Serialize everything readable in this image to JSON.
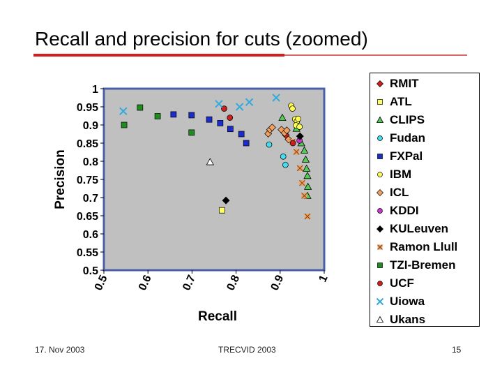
{
  "slide": {
    "title": "Recall and precision for cuts (zoomed)",
    "footer_left": "17. Nov 2003",
    "footer_center": "TRECVID 2003",
    "footer_right": "15"
  },
  "colors": {
    "plot_bg": "#c0c0c0",
    "plot_border": "#4a5fa8",
    "title_rule": "#d11f1f"
  },
  "chart_data": {
    "type": "scatter",
    "title": "",
    "xlabel": "Recall",
    "ylabel": "Precision",
    "xlim": [
      0.5,
      1.0
    ],
    "ylim": [
      0.5,
      1.0
    ],
    "x_ticks": [
      "0.5",
      "0.6",
      "0.7",
      "0.8",
      "0.9",
      "1"
    ],
    "y_ticks": [
      "0.5",
      "0.55",
      "0.6",
      "0.65",
      "0.7",
      "0.75",
      "0.8",
      "0.85",
      "0.9",
      "0.95",
      "1"
    ],
    "grid": false,
    "legend_position": "right",
    "series": [
      {
        "name": "RMIT",
        "marker": "diamond",
        "color": "#cc2020",
        "points": [
          [
            0.909,
            0.879
          ],
          [
            0.913,
            0.872
          ]
        ]
      },
      {
        "name": "ATL",
        "marker": "square",
        "color": "#ffff66",
        "points": [
          [
            0.768,
            0.665
          ]
        ]
      },
      {
        "name": "CLIPS",
        "marker": "triangle",
        "color": "#55cc55",
        "points": [
          [
            0.905,
            0.92
          ],
          [
            0.937,
            0.89
          ],
          [
            0.948,
            0.85
          ],
          [
            0.955,
            0.83
          ],
          [
            0.958,
            0.805
          ],
          [
            0.96,
            0.78
          ],
          [
            0.962,
            0.76
          ],
          [
            0.963,
            0.73
          ],
          [
            0.962,
            0.705
          ]
        ]
      },
      {
        "name": "Fudan",
        "marker": "circle",
        "color": "#44ddee",
        "points": [
          [
            0.875,
            0.846
          ],
          [
            0.907,
            0.813
          ],
          [
            0.912,
            0.79
          ]
        ]
      },
      {
        "name": "FXPal",
        "marker": "square",
        "color": "#1a2ccc",
        "points": [
          [
            0.658,
            0.929
          ],
          [
            0.699,
            0.927
          ],
          [
            0.739,
            0.915
          ],
          [
            0.764,
            0.905
          ],
          [
            0.787,
            0.889
          ],
          [
            0.812,
            0.875
          ],
          [
            0.823,
            0.85
          ]
        ]
      },
      {
        "name": "IBM",
        "marker": "circle",
        "color": "#ffff55",
        "points": [
          [
            0.925,
            0.953
          ],
          [
            0.928,
            0.945
          ],
          [
            0.934,
            0.916
          ],
          [
            0.938,
            0.91
          ],
          [
            0.941,
            0.917
          ],
          [
            0.936,
            0.899
          ],
          [
            0.944,
            0.895
          ]
        ]
      },
      {
        "name": "ICL",
        "marker": "diamond",
        "color": "#f0a060",
        "points": [
          [
            0.873,
            0.876
          ],
          [
            0.877,
            0.887
          ],
          [
            0.882,
            0.893
          ],
          [
            0.903,
            0.887
          ],
          [
            0.91,
            0.878
          ],
          [
            0.915,
            0.885
          ],
          [
            0.919,
            0.86
          ]
        ]
      },
      {
        "name": "KDDI",
        "marker": "circle",
        "color": "#cc33cc",
        "points": [
          [
            0.944,
            0.857
          ]
        ]
      },
      {
        "name": "KULeuven",
        "marker": "diamond",
        "color": "#000000",
        "points": [
          [
            0.777,
            0.692
          ],
          [
            0.945,
            0.869
          ]
        ]
      },
      {
        "name": "Ramon Llull",
        "marker": "xsquare",
        "color": "#f0a060",
        "points": [
          [
            0.928,
            0.854
          ],
          [
            0.937,
            0.826
          ],
          [
            0.945,
            0.781
          ],
          [
            0.95,
            0.74
          ],
          [
            0.955,
            0.705
          ],
          [
            0.962,
            0.648
          ]
        ]
      },
      {
        "name": "TZI-Bremen",
        "marker": "square",
        "color": "#1f8c1f",
        "points": [
          [
            0.546,
            0.9
          ],
          [
            0.582,
            0.948
          ],
          [
            0.622,
            0.924
          ],
          [
            0.699,
            0.879
          ]
        ]
      },
      {
        "name": "UCF",
        "marker": "circle",
        "color": "#cc2020",
        "points": [
          [
            0.773,
            0.945
          ],
          [
            0.786,
            0.92
          ],
          [
            0.929,
            0.85
          ]
        ]
      },
      {
        "name": "Uiowa",
        "marker": "x",
        "color": "#33aadd",
        "points": [
          [
            0.544,
            0.938
          ],
          [
            0.761,
            0.958
          ],
          [
            0.808,
            0.95
          ],
          [
            0.83,
            0.963
          ],
          [
            0.891,
            0.975
          ]
        ]
      },
      {
        "name": "Ukans",
        "marker": "triangle",
        "color": "#ffffff",
        "points": [
          [
            0.741,
            0.798
          ]
        ]
      }
    ]
  }
}
